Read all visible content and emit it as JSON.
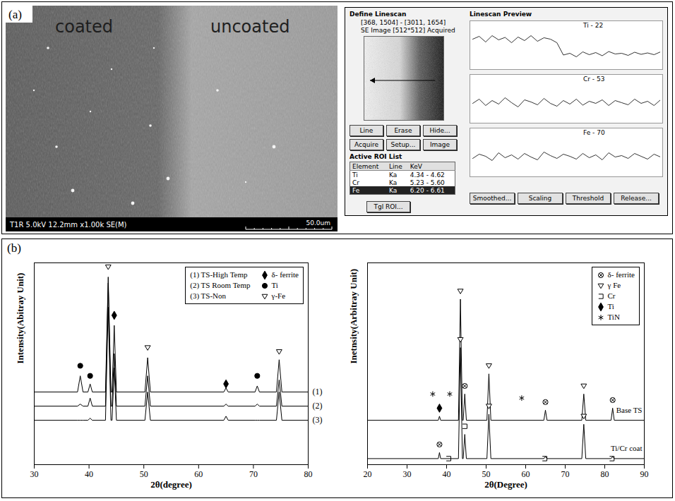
{
  "panel_a": {
    "letter": "(a)",
    "sem_image": {
      "labels": [
        "coated",
        "uncoated"
      ],
      "footer": "T1R 5.0kV 12.2mm x1.00k SE(M)",
      "scale_bar": "50.0um"
    },
    "linescan_window": {
      "title": "Define Linescan",
      "coordinates": "[368, 1504] - [3011, 1654]",
      "image_caption": "SE Image [512*512] Acquired",
      "buttons": [
        [
          "Line",
          "Erase",
          "Hide..."
        ],
        [
          "Acquire",
          "Setup...",
          "Image"
        ]
      ],
      "roi_title": "Active ROI List",
      "roi_table": {
        "header": [
          "Element",
          "Line",
          "KeV"
        ],
        "rows": [
          [
            "Ti",
            "Ka",
            "4.34 - 4.62"
          ],
          [
            "Cr",
            "Ka",
            "5.23 - 5.60"
          ],
          [
            "Fe",
            "Ka",
            "6.20 - 6.61"
          ]
        ]
      },
      "roi_button": "Tgl ROI...",
      "preview_title": "Linescan Preview",
      "ylim": [
        0,
        100
      ],
      "traces": [
        {
          "label": "Ti - 22",
          "values": [
            80,
            88,
            72,
            90,
            78,
            85,
            70,
            86,
            76,
            90,
            74,
            84,
            80,
            70,
            35,
            40,
            30,
            44,
            36,
            42,
            33,
            45,
            38,
            40,
            34,
            43,
            37,
            41,
            36,
            44
          ]
        },
        {
          "label": "Cr - 53",
          "values": [
            50,
            62,
            44,
            58,
            48,
            66,
            52,
            40,
            60,
            54,
            46,
            64,
            50,
            42,
            58,
            48,
            62,
            45,
            56,
            50,
            60,
            44,
            58,
            52,
            46,
            62,
            50,
            56,
            44,
            60
          ]
        },
        {
          "label": "Fe - 70",
          "values": [
            46,
            58,
            52,
            40,
            62,
            48,
            56,
            44,
            60,
            50,
            42,
            64,
            54,
            46,
            58,
            52,
            44,
            60,
            48,
            56,
            42,
            62,
            50,
            54,
            46,
            60,
            52,
            44,
            58,
            50
          ]
        }
      ],
      "bottom_buttons": [
        "Smoothed...",
        "Scaling",
        "Threshold",
        "Release..."
      ]
    }
  },
  "panel_b": {
    "letter": "(b)"
  },
  "chart_data": [
    {
      "type": "line",
      "x": [
        30,
        37.9,
        38.4,
        38.9,
        39.8,
        40.2,
        40.6,
        43.0,
        43.5,
        44.0,
        44.2,
        44.6,
        45.0,
        50.2,
        50.7,
        51.2,
        64.6,
        65.0,
        65.4,
        70.3,
        70.7,
        71.1,
        74.2,
        74.7,
        75.2,
        80
      ],
      "series": [
        {
          "name": "(1) TS-High Temp",
          "end_label": "(1)",
          "color": "#000000",
          "values": [
            36,
            36,
            44,
            36,
            36,
            40,
            36,
            36,
            93,
            36,
            36,
            69,
            36,
            36,
            53,
            36,
            36,
            38,
            36,
            36,
            39,
            36,
            36,
            52,
            36,
            36
          ]
        },
        {
          "name": "(2) TS Room Temp",
          "end_label": "(2)",
          "color": "#000000",
          "values": [
            29,
            29,
            30,
            29,
            29,
            33,
            29,
            29,
            90,
            29,
            29,
            55,
            29,
            29,
            44,
            29,
            29,
            30,
            29,
            29,
            30,
            29,
            29,
            42,
            29,
            29
          ]
        },
        {
          "name": "(3) TS-Non",
          "end_label": "(3)",
          "color": "#000000",
          "values": [
            22,
            22,
            22,
            22,
            22,
            23,
            22,
            22,
            78,
            22,
            22,
            48,
            22,
            22,
            36,
            22,
            22,
            24,
            22,
            22,
            22,
            22,
            22,
            36,
            22,
            22
          ]
        }
      ],
      "phases": [
        {
          "name": "δ- ferrite",
          "marker": "diamond",
          "x": [
            44.6,
            65.0
          ],
          "y": [
            74,
            40
          ]
        },
        {
          "name": "Ti",
          "marker": "circle",
          "x": [
            38.4,
            40.2,
            70.7
          ],
          "y": [
            49,
            44,
            44
          ]
        },
        {
          "name": "γ-Fe",
          "marker": "triangle-down",
          "x": [
            43.5,
            50.7,
            74.7
          ],
          "y": [
            98,
            58,
            56
          ]
        }
      ],
      "x_label": "2θ(degree)",
      "y_label": "Intensity(Abitray Unit)",
      "xlim": [
        30,
        80
      ],
      "xticks": [
        30,
        40,
        50,
        60,
        70,
        80
      ],
      "ylim": [
        0,
        100
      ],
      "tick_labels": "x",
      "legend": "top-right"
    },
    {
      "type": "line",
      "x": [
        20,
        37.9,
        38.2,
        38.5,
        43.0,
        43.5,
        44.0,
        44.2,
        44.6,
        45.0,
        50.2,
        50.7,
        51.2,
        64.6,
        65.0,
        65.4,
        74.2,
        74.7,
        75.2,
        81.6,
        82.0,
        82.4,
        90
      ],
      "series": [
        {
          "name": "Base TS",
          "color": "#000000",
          "values": [
            22,
            22,
            24,
            22,
            22,
            82,
            22,
            22,
            35,
            22,
            22,
            45,
            22,
            22,
            27,
            22,
            22,
            35,
            22,
            22,
            28,
            22,
            22
          ]
        },
        {
          "name": "Ti/Cr coat",
          "color": "#000000",
          "values": [
            3,
            3,
            6,
            3,
            3,
            58,
            3,
            3,
            15,
            3,
            3,
            25,
            3,
            3,
            4,
            3,
            3,
            20,
            3,
            3,
            4,
            3,
            3
          ]
        }
      ],
      "phases": [
        {
          "name": "δ- ferrite",
          "marker": "circle-cross",
          "x": [
            44.6,
            65.0,
            82.0,
            38.2
          ],
          "y": [
            39,
            31,
            32,
            10
          ]
        },
        {
          "name": "γ Fe",
          "marker": "triangle-down",
          "x": [
            43.5,
            43.5,
            50.7,
            50.7,
            74.7,
            74.7
          ],
          "y": [
            86,
            62,
            49,
            29,
            39,
            24
          ]
        },
        {
          "name": "Cr",
          "marker": "square-open",
          "x": [
            40.5,
            44.6,
            64.8,
            81.8
          ],
          "y": [
            3,
            19,
            3,
            3
          ]
        },
        {
          "name": "Ti",
          "marker": "diamond",
          "x": [
            38.2
          ],
          "y": [
            28
          ]
        },
        {
          "name": "TiN",
          "marker": "asterisk",
          "x": [
            36.5,
            40.8,
            59.0
          ],
          "y": [
            35,
            35,
            33
          ]
        }
      ],
      "x_label": "2θ(Degree)",
      "y_label": "Inetnsity(Arbitray Unit)",
      "xlim": [
        20,
        90
      ],
      "xticks": [
        20,
        30,
        40,
        50,
        60,
        70,
        80,
        90
      ],
      "ylim": [
        0,
        100
      ],
      "tick_labels": "x",
      "legend": "top-right"
    }
  ]
}
